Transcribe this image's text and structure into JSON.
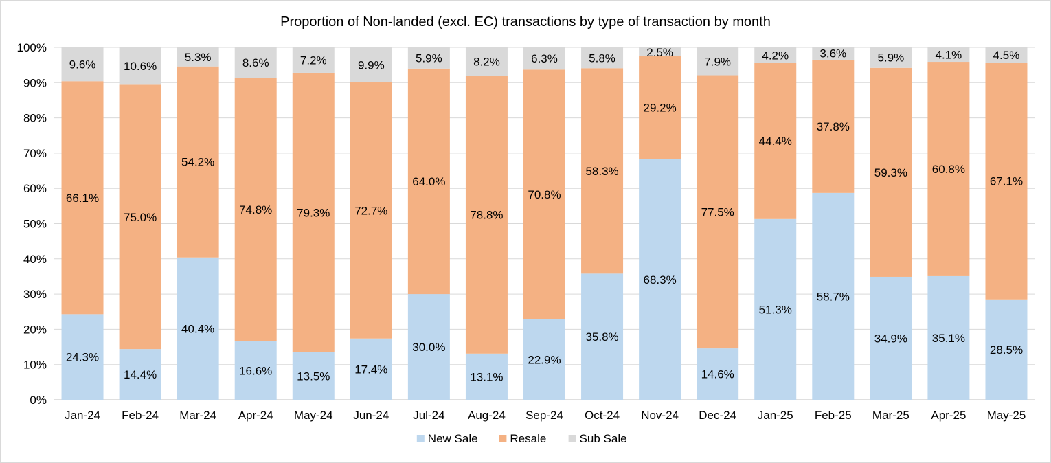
{
  "chart_data": {
    "type": "bar",
    "stacked": true,
    "title": "Proportion of Non-landed (excl. EC) transactions by type of transaction by month",
    "xlabel": "",
    "ylabel": "",
    "ylim": [
      0,
      100
    ],
    "yticks": [
      "0%",
      "10%",
      "20%",
      "30%",
      "40%",
      "50%",
      "60%",
      "70%",
      "80%",
      "90%",
      "100%"
    ],
    "grid": true,
    "legend_position": "bottom",
    "categories": [
      "Jan-24",
      "Feb-24",
      "Mar-24",
      "Apr-24",
      "May-24",
      "Jun-24",
      "Jul-24",
      "Aug-24",
      "Sep-24",
      "Oct-24",
      "Nov-24",
      "Dec-24",
      "Jan-25",
      "Feb-25",
      "Mar-25",
      "Apr-25",
      "May-25"
    ],
    "series": [
      {
        "name": "New Sale",
        "color": "#bdd7ee",
        "values": [
          24.3,
          14.4,
          40.4,
          16.6,
          13.5,
          17.4,
          30.0,
          13.1,
          22.9,
          35.8,
          68.3,
          14.6,
          51.3,
          58.7,
          34.9,
          35.1,
          28.5
        ],
        "labels": [
          "24.3%",
          "14.4%",
          "40.4%",
          "16.6%",
          "13.5%",
          "17.4%",
          "30.0%",
          "13.1%",
          "22.9%",
          "35.8%",
          "68.3%",
          "14.6%",
          "51.3%",
          "58.7%",
          "34.9%",
          "35.1%",
          "28.5%"
        ]
      },
      {
        "name": "Resale",
        "color": "#f4b183",
        "values": [
          66.1,
          75.0,
          54.2,
          74.8,
          79.3,
          72.7,
          64.0,
          78.8,
          70.8,
          58.3,
          29.2,
          77.5,
          44.4,
          37.8,
          59.3,
          60.8,
          67.1
        ],
        "labels": [
          "66.1%",
          "75.0%",
          "54.2%",
          "74.8%",
          "79.3%",
          "72.7%",
          "64.0%",
          "78.8%",
          "70.8%",
          "58.3%",
          "29.2%",
          "77.5%",
          "44.4%",
          "37.8%",
          "59.3%",
          "60.8%",
          "67.1%"
        ]
      },
      {
        "name": "Sub Sale",
        "color": "#d9d9d9",
        "values": [
          9.6,
          10.6,
          5.3,
          8.6,
          7.2,
          9.9,
          5.9,
          8.2,
          6.3,
          5.8,
          2.5,
          7.9,
          4.2,
          3.6,
          5.9,
          4.1,
          4.5
        ],
        "labels": [
          "9.6%",
          "10.6%",
          "5.3%",
          "8.6%",
          "7.2%",
          "9.9%",
          "5.9%",
          "8.2%",
          "6.3%",
          "5.8%",
          "2.5%",
          "7.9%",
          "4.2%",
          "3.6%",
          "5.9%",
          "4.1%",
          "4.5%"
        ]
      }
    ]
  }
}
